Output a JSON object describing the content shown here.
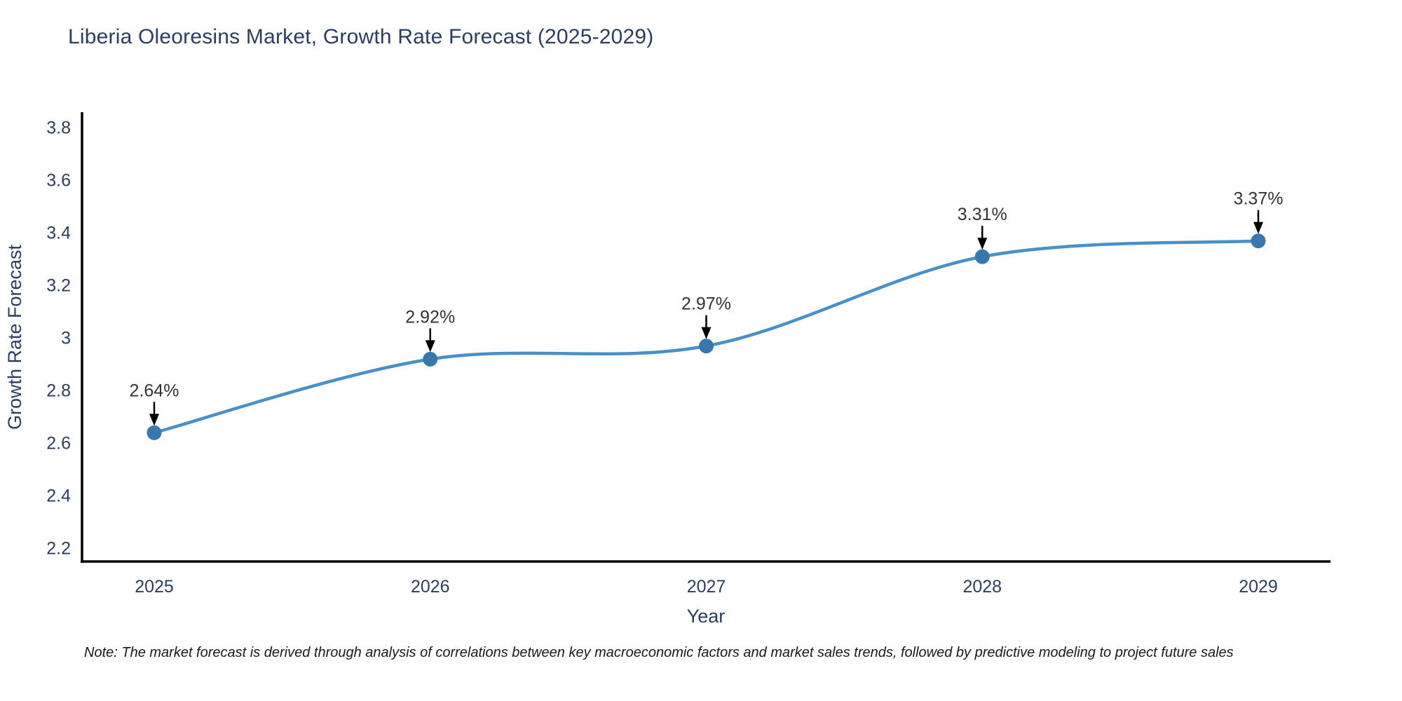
{
  "page": {
    "background": "#ffffff"
  },
  "chart_data": {
    "type": "line",
    "title": "Liberia Oleoresins Market, Growth Rate Forecast (2025-2029)",
    "xlabel": "Year",
    "ylabel": "Growth Rate Forecast",
    "categories": [
      "2025",
      "2026",
      "2027",
      "2028",
      "2029"
    ],
    "values": [
      2.64,
      2.92,
      2.97,
      3.31,
      3.37
    ],
    "point_labels": [
      "2.64%",
      "2.92%",
      "2.97%",
      "3.31%",
      "3.37%"
    ],
    "ytick_values": [
      2.2,
      2.4,
      2.6,
      2.8,
      3.0,
      3.2,
      3.4,
      3.6,
      3.8
    ],
    "ytick_labels": [
      "2.2",
      "2.4",
      "2.6",
      "2.8",
      "3",
      "3.2",
      "3.4",
      "3.6",
      "3.8"
    ],
    "ylim": [
      2.15,
      3.86
    ],
    "grid": false,
    "legend": "none",
    "line_color": "#4a90c8",
    "marker_color": "#3778af",
    "annotation_color": "#333333",
    "annotation_arrow_color": "#000000",
    "axis_color": "#000000",
    "text_color": "#2a3f5f"
  },
  "note": {
    "text": "Note: The market forecast is derived through analysis of correlations between key macroeconomic factors and market sales trends, followed by predictive modeling to project future sales"
  }
}
